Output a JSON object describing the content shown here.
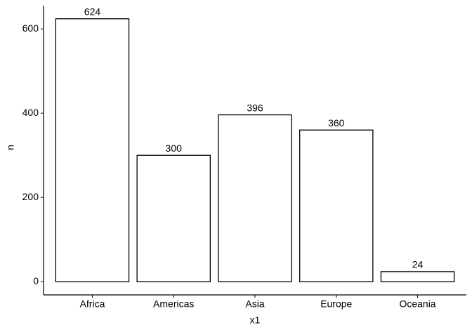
{
  "chart_data": {
    "type": "bar",
    "categories": [
      "Africa",
      "Americas",
      "Asia",
      "Europe",
      "Oceania"
    ],
    "values": [
      624,
      300,
      396,
      360,
      24
    ],
    "color": "#ffffff",
    "stroke": "#000000",
    "ylim": [
      -31.2,
      655.2
    ],
    "yticks": [
      0,
      200,
      400,
      600
    ],
    "x_label": "x1",
    "y_label": "n",
    "show_value_labels": true
  }
}
